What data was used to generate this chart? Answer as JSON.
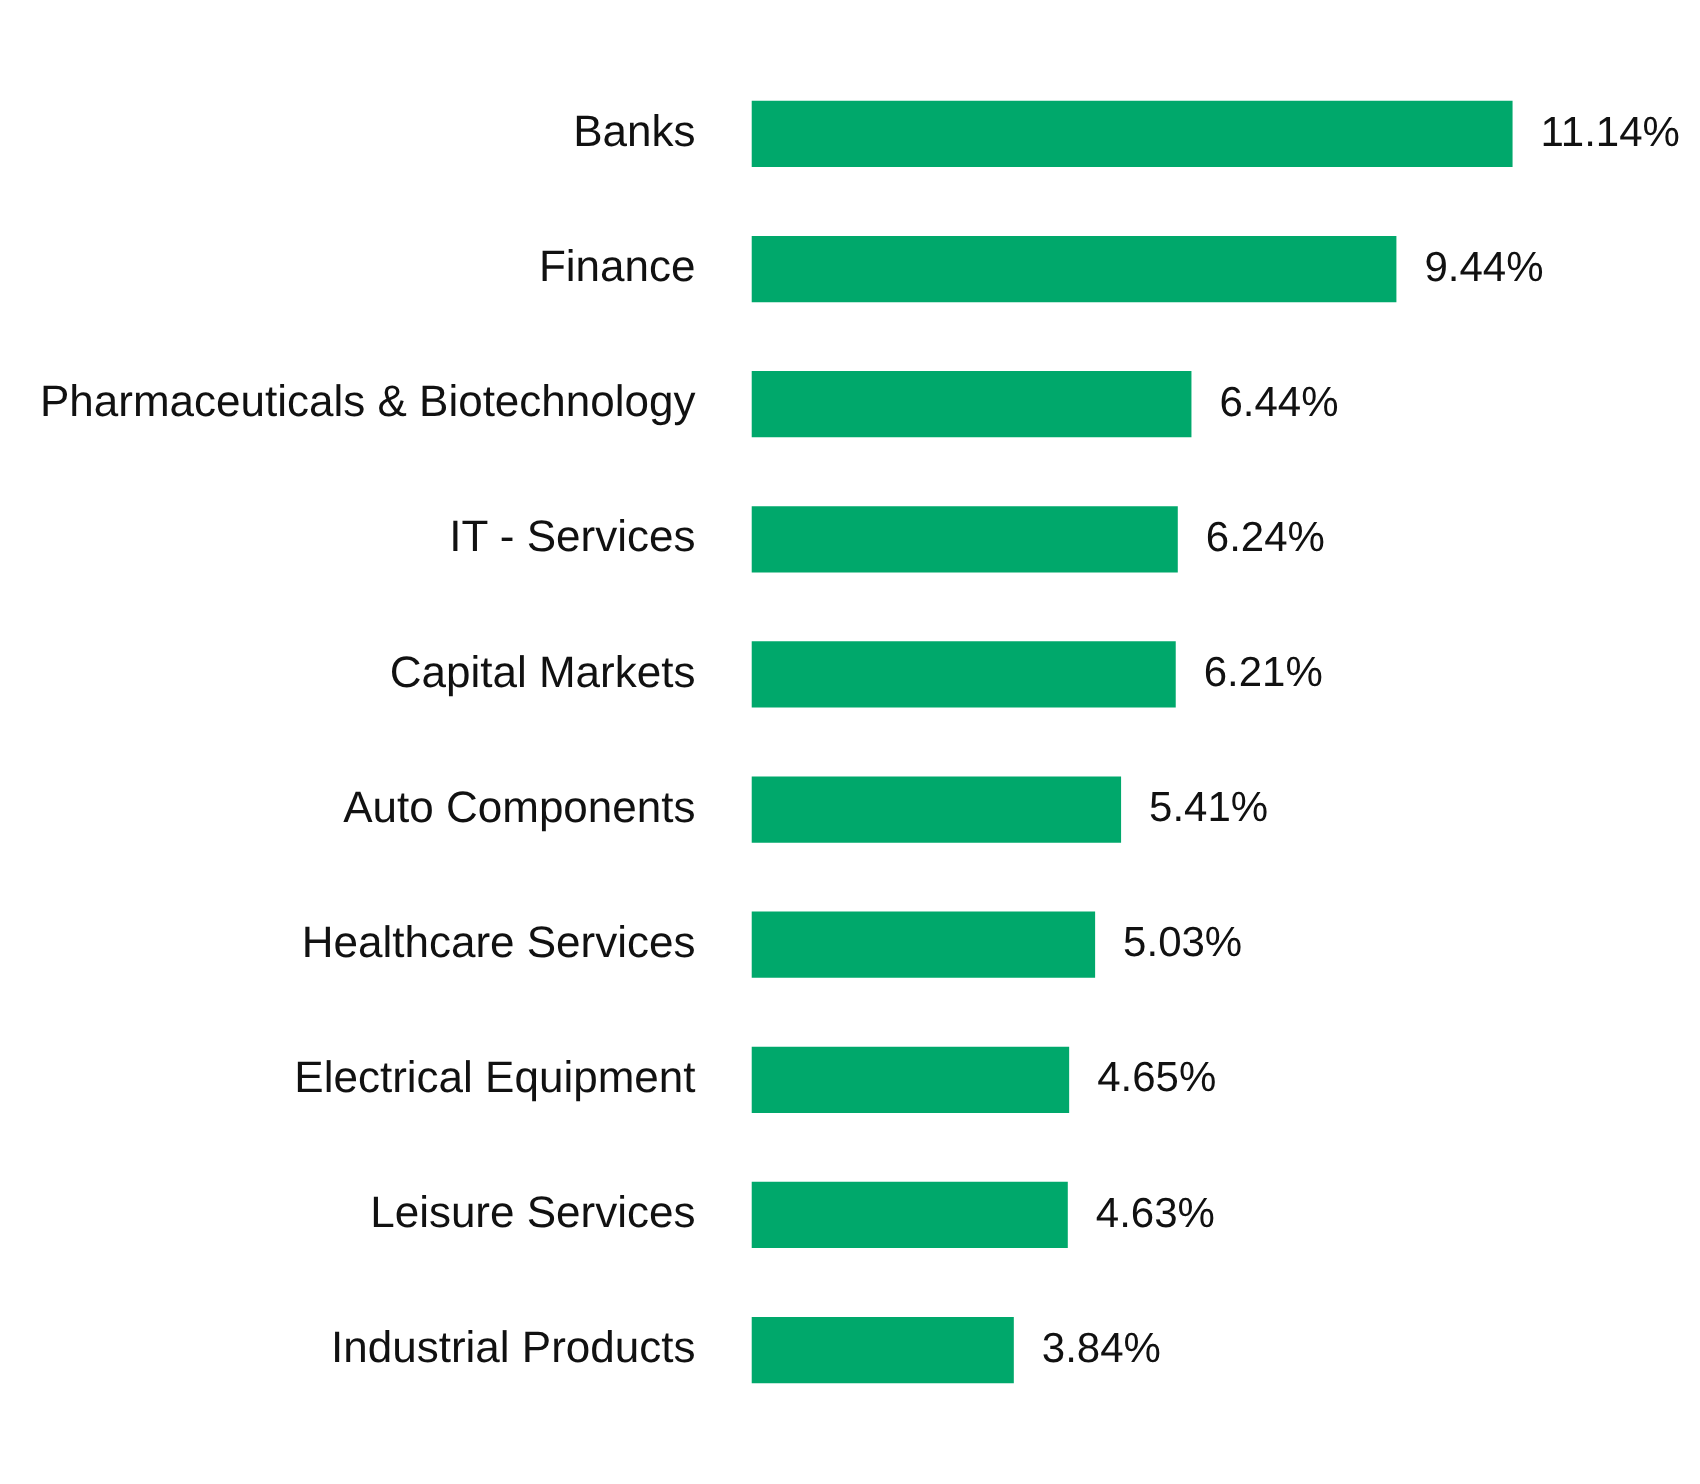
{
  "chart_data": {
    "type": "bar",
    "orientation": "horizontal",
    "categories": [
      "Banks",
      "Finance",
      "Pharmaceuticals & Biotechnology",
      "IT - Services",
      "Capital Markets",
      "Auto Components",
      "Healthcare Services",
      "Electrical Equipment",
      "Leisure Services",
      "Industrial Products"
    ],
    "series": [
      {
        "color": "#00a86b",
        "values": [
          11.14,
          9.44,
          6.44,
          6.24,
          6.21,
          5.41,
          5.03,
          4.65,
          4.63,
          3.84
        ],
        "value_labels": [
          "11.14%",
          "9.44%",
          "6.44%",
          "6.24%",
          "6.21%",
          "5.41%",
          "5.03%",
          "4.65%",
          "4.63%",
          "3.84%"
        ]
      }
    ],
    "legend": false,
    "tick_labels": "y"
  }
}
